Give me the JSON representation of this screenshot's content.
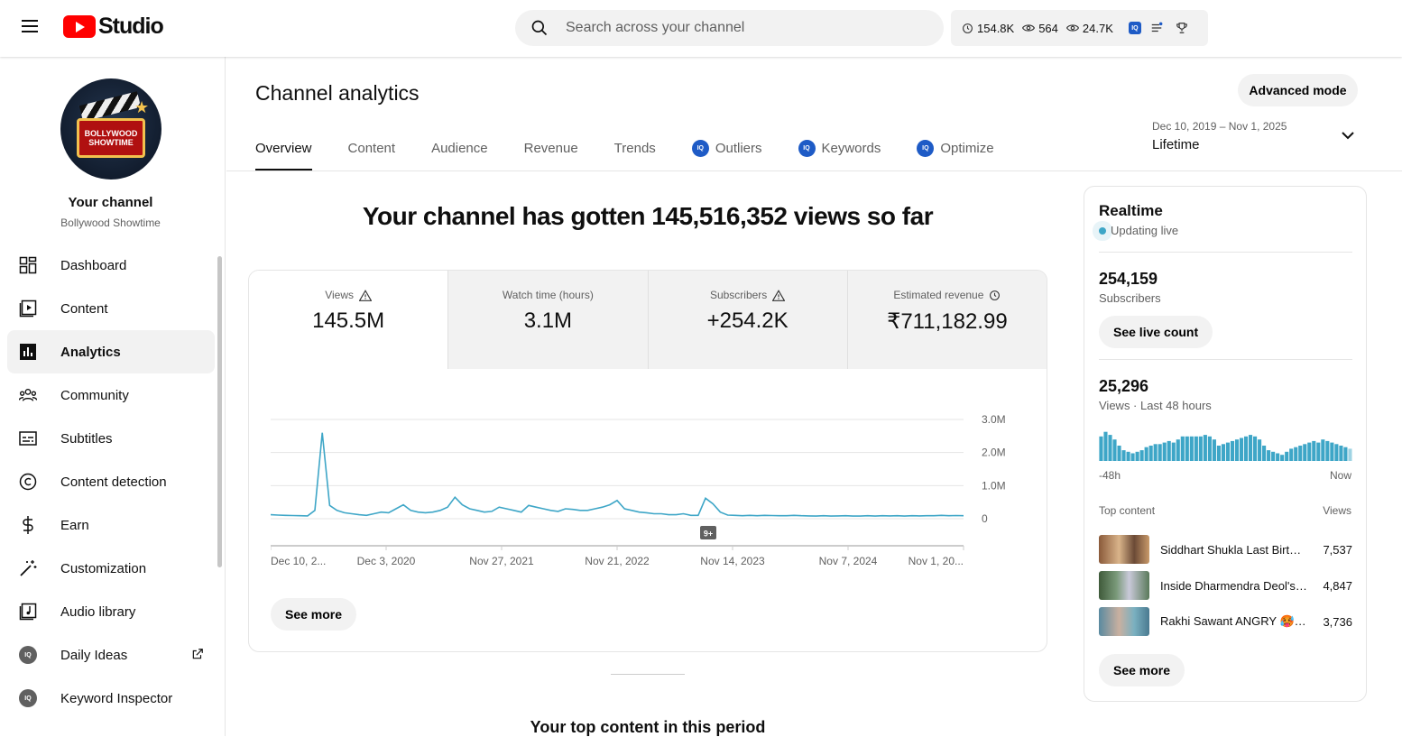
{
  "app": {
    "logo_text": "Studio"
  },
  "search": {
    "placeholder": "Search across your channel"
  },
  "header_stats": [
    {
      "icon": "clock-icon",
      "value": "154.8K"
    },
    {
      "icon": "eye-icon",
      "value": "564"
    },
    {
      "icon": "eye-icon",
      "value": "24.7K"
    }
  ],
  "channel": {
    "heading": "Your channel",
    "name": "Bollywood Showtime",
    "avatar_text": "BOLLYWOOD SHOWTIME"
  },
  "sidebar": {
    "items": [
      {
        "label": "Dashboard",
        "icon": "dashboard-icon"
      },
      {
        "label": "Content",
        "icon": "content-icon"
      },
      {
        "label": "Analytics",
        "icon": "analytics-icon",
        "active": true
      },
      {
        "label": "Community",
        "icon": "community-icon"
      },
      {
        "label": "Subtitles",
        "icon": "subtitles-icon"
      },
      {
        "label": "Content detection",
        "icon": "copyright-icon"
      },
      {
        "label": "Earn",
        "icon": "dollar-icon"
      },
      {
        "label": "Customization",
        "icon": "magic-wand-icon"
      },
      {
        "label": "Audio library",
        "icon": "audio-library-icon"
      },
      {
        "label": "Daily Ideas",
        "icon": "vidiq-icon"
      },
      {
        "label": "Keyword Inspector",
        "icon": "vidiq-icon"
      }
    ]
  },
  "page": {
    "title": "Channel analytics",
    "advanced_mode": "Advanced mode",
    "tabs": [
      "Overview",
      "Content",
      "Audience",
      "Revenue",
      "Trends",
      "Outliers",
      "Keywords",
      "Optimize"
    ],
    "date_range": {
      "range": "Dec 10, 2019 – Nov 1, 2025",
      "label": "Lifetime"
    },
    "headline": "Your channel has gotten 145,516,352 views so far",
    "see_more": "See more",
    "top_content_heading": "Your top content in this period"
  },
  "metrics": [
    {
      "label": "Views",
      "value": "145.5M",
      "icon": "warning-icon"
    },
    {
      "label": "Watch time (hours)",
      "value": "3.1M"
    },
    {
      "label": "Subscribers",
      "value": "+254.2K",
      "icon": "warning-icon"
    },
    {
      "label": "Estimated revenue",
      "value": "₹711,182.99",
      "icon": "clock-icon"
    }
  ],
  "chart_data": {
    "type": "line",
    "x_tick_labels": [
      "Dec 10, 2...",
      "Dec 3, 2020",
      "Nov 27, 2021",
      "Nov 21, 2022",
      "Nov 14, 2023",
      "Nov 7, 2024",
      "Nov 1, 20..."
    ],
    "y_tick_labels": [
      "0",
      "1.0M",
      "2.0M",
      "3.0M"
    ],
    "ylim": [
      0,
      3000000
    ],
    "marker_label": "9+",
    "series": [
      {
        "values": [
          120000,
          110000,
          100000,
          95000,
          90000,
          85000,
          250000,
          2600000,
          400000,
          250000,
          180000,
          150000,
          120000,
          100000,
          150000,
          200000,
          180000,
          300000,
          420000,
          250000,
          200000,
          180000,
          200000,
          250000,
          350000,
          650000,
          420000,
          300000,
          250000,
          200000,
          220000,
          350000,
          300000,
          250000,
          200000,
          400000,
          350000,
          300000,
          250000,
          220000,
          300000,
          280000,
          250000,
          250000,
          300000,
          350000,
          420000,
          550000,
          300000,
          250000,
          200000,
          180000,
          150000,
          150000,
          120000,
          120000,
          150000,
          100000,
          100000,
          620000,
          450000,
          200000,
          110000,
          100000,
          90000,
          100000,
          90000,
          100000,
          95000,
          90000,
          90000,
          100000,
          90000,
          85000,
          80000,
          90000,
          80000,
          85000,
          90000,
          80000,
          80000,
          90000,
          80000,
          90000,
          85000,
          90000,
          80000,
          90000,
          85000,
          90000,
          90000,
          100000,
          90000,
          95000,
          90000
        ]
      }
    ],
    "grid": true,
    "color": "#3ea6c7"
  },
  "realtime": {
    "title": "Realtime",
    "status": "Updating live",
    "subscribers_value": "254,159",
    "subscribers_label": "Subscribers",
    "see_live_count": "See live count",
    "views_value": "25,296",
    "views_label": "Views · Last 48 hours",
    "hourly_views": [
      0.8,
      0.95,
      0.85,
      0.7,
      0.5,
      0.35,
      0.3,
      0.25,
      0.3,
      0.35,
      0.45,
      0.5,
      0.55,
      0.55,
      0.6,
      0.65,
      0.6,
      0.7,
      0.8,
      0.8,
      0.8,
      0.8,
      0.8,
      0.85,
      0.8,
      0.7,
      0.5,
      0.55,
      0.6,
      0.65,
      0.7,
      0.75,
      0.8,
      0.85,
      0.8,
      0.7,
      0.5,
      0.35,
      0.3,
      0.25,
      0.2,
      0.3,
      0.4,
      0.45,
      0.5,
      0.55,
      0.6,
      0.65,
      0.6,
      0.7,
      0.65,
      0.6,
      0.55,
      0.5,
      0.45,
      0.4
    ],
    "axis_left": "-48h",
    "axis_right": "Now",
    "top_content_label": "Top content",
    "views_col": "Views",
    "top_content": [
      {
        "title": "Siddhart Shukla Last Birt…",
        "views": "7,537"
      },
      {
        "title": "Inside Dharmendra Deol's…",
        "views": "4,847"
      },
      {
        "title": "Rakhi Sawant ANGRY 🥵…",
        "views": "3,736"
      }
    ],
    "see_more": "See more"
  }
}
